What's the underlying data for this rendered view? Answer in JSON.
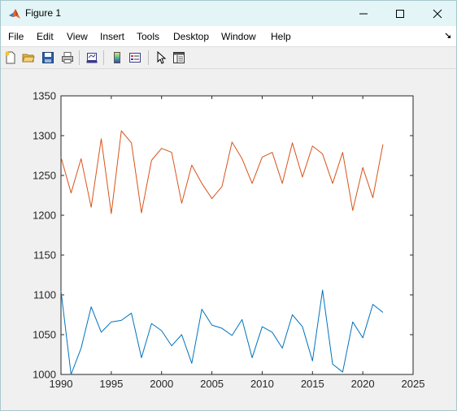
{
  "window": {
    "title": "Figure 1"
  },
  "menu": [
    "File",
    "Edit",
    "View",
    "Insert",
    "Tools",
    "Desktop",
    "Window",
    "Help"
  ],
  "toolbar": [
    "new-figure",
    "open-file",
    "save",
    "print",
    "link-plot",
    "insert-colorbar",
    "insert-legend",
    "edit-plot",
    "property-inspector"
  ],
  "chart_data": {
    "type": "line",
    "title": "",
    "xlabel": "",
    "ylabel": "",
    "xlim": [
      1990,
      2025
    ],
    "ylim": [
      1000,
      1350
    ],
    "xticks": [
      "1990",
      "1995",
      "2000",
      "2005",
      "2010",
      "2015",
      "2020",
      "2025"
    ],
    "yticks": [
      "1000",
      "1050",
      "1100",
      "1150",
      "1200",
      "1250",
      "1300",
      "1350"
    ],
    "grid": false,
    "x": [
      1990,
      1991,
      1992,
      1993,
      1994,
      1995,
      1996,
      1997,
      1998,
      1999,
      2000,
      2001,
      2002,
      2003,
      2004,
      2005,
      2006,
      2007,
      2008,
      2009,
      2010,
      2011,
      2012,
      2013,
      2014,
      2015,
      2016,
      2017,
      2018,
      2019,
      2020,
      2021,
      2022
    ],
    "series": [
      {
        "color": "#0072BD",
        "values": [
          1105,
          1000,
          1033,
          1085,
          1053,
          1066,
          1068,
          1077,
          1021,
          1064,
          1055,
          1036,
          1050,
          1014,
          1082,
          1062,
          1058,
          1049,
          1069,
          1021,
          1060,
          1053,
          1033,
          1075,
          1060,
          1017,
          1106,
          1013,
          1003,
          1066,
          1046,
          1088,
          1078
        ]
      },
      {
        "color": "#D95319",
        "values": [
          1273,
          1228,
          1271,
          1210,
          1296,
          1202,
          1306,
          1291,
          1203,
          1269,
          1284,
          1279,
          1215,
          1263,
          1240,
          1221,
          1236,
          1292,
          1271,
          1240,
          1273,
          1279,
          1240,
          1291,
          1248,
          1287,
          1277,
          1240,
          1279,
          1206,
          1260,
          1222,
          1289
        ]
      }
    ]
  }
}
